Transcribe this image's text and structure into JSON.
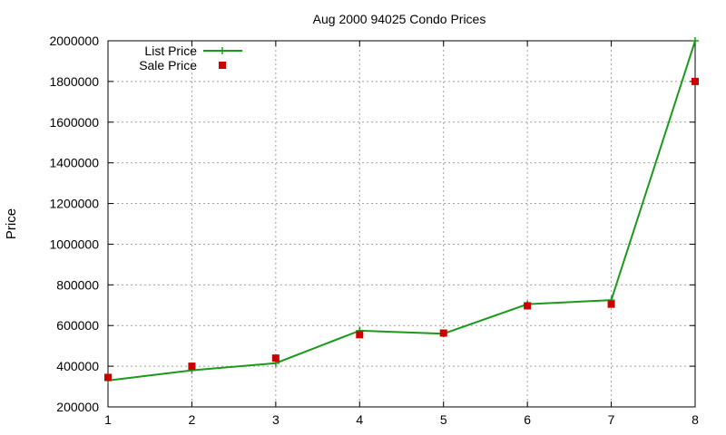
{
  "chart_data": {
    "type": "line",
    "title": "Aug 2000 94025 Condo Prices",
    "xlabel": "",
    "ylabel": "Price",
    "x": [
      1,
      2,
      3,
      4,
      5,
      6,
      7,
      8
    ],
    "xlim": [
      1,
      8
    ],
    "ylim": [
      200000,
      2000000
    ],
    "x_ticks": [
      "1",
      "2",
      "3",
      "4",
      "5",
      "6",
      "7",
      "8"
    ],
    "y_ticks": [
      "200000",
      "400000",
      "600000",
      "800000",
      "1000000",
      "1200000",
      "1400000",
      "1600000",
      "1800000",
      "2000000"
    ],
    "grid": true,
    "legend_position": "top-left",
    "series": [
      {
        "name": "List Price",
        "style": "line-with-plus-markers",
        "color": "#1a9a1a",
        "values": [
          330000,
          380000,
          415000,
          575000,
          560000,
          705000,
          725000,
          2000000
        ]
      },
      {
        "name": "Sale Price",
        "style": "square-markers",
        "color": "#cc0000",
        "values": [
          345000,
          400000,
          440000,
          555000,
          563000,
          697000,
          705000,
          1800000
        ]
      }
    ]
  }
}
